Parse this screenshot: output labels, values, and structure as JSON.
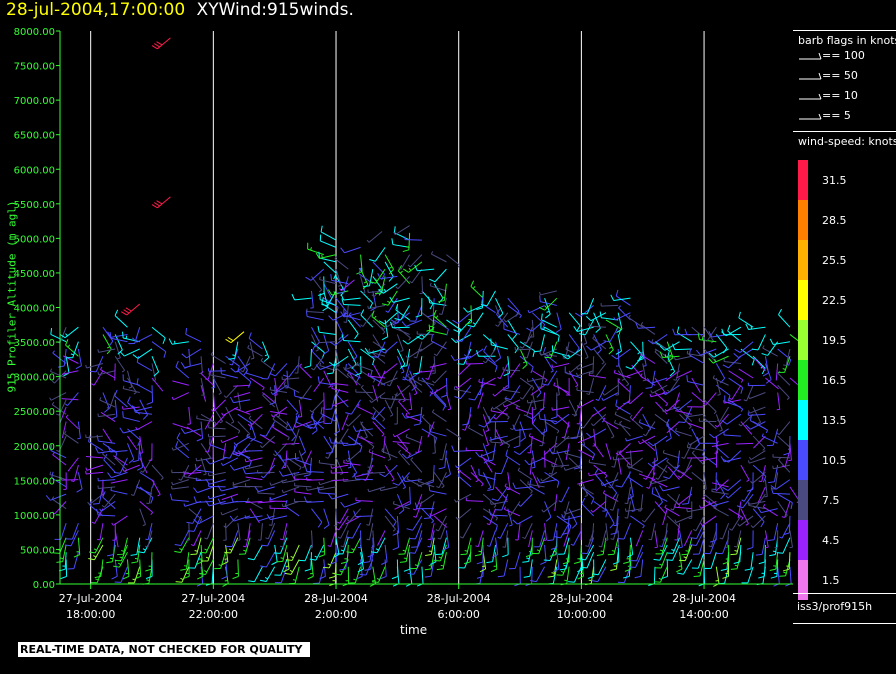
{
  "header": {
    "timestamp": "28-jul-2004,17:00:00",
    "product": "XYWind:915winds."
  },
  "chart_data": {
    "type": "wind-barb time-height",
    "ylabel": "915 Profiler Altitude (m agl)",
    "xlabel": "time",
    "ylim": [
      0,
      8000
    ],
    "yticks": [
      "0.00",
      "500.00",
      "1000.00",
      "1500.00",
      "2000.00",
      "2500.00",
      "3000.00",
      "3500.00",
      "4000.00",
      "4500.00",
      "5000.00",
      "5500.00",
      "6000.00",
      "6500.00",
      "7000.00",
      "7500.00",
      "8000.00"
    ],
    "xticks": [
      {
        "date": "27-Jul-2004",
        "time": "18:00:00"
      },
      {
        "date": "27-Jul-2004",
        "time": "22:00:00"
      },
      {
        "date": "28-Jul-2004",
        "time": "2:00:00"
      },
      {
        "date": "28-Jul-2004",
        "time": "6:00:00"
      },
      {
        "date": "28-Jul-2004",
        "time": "10:00:00"
      },
      {
        "date": "28-Jul-2004",
        "time": "14:00:00"
      }
    ],
    "xlim_hours": [
      -1,
      22.9
    ],
    "profile_interval_hours": 0.4,
    "vertical_gridlines": true,
    "high_level_barbs": [
      {
        "hour": 2.6,
        "alt": 7900,
        "speed": 31.5
      },
      {
        "hour": 2.6,
        "alt": 5600,
        "speed": 31.5
      },
      {
        "hour": 1.6,
        "alt": 4050,
        "speed": 31.5
      },
      {
        "hour": 5.0,
        "alt": 3650,
        "speed": 22.5
      },
      {
        "hour": 9.5,
        "alt": 5100,
        "speed": 7.5
      },
      {
        "hour": 8.6,
        "alt": 4400,
        "speed": 4.5
      }
    ]
  },
  "legend": {
    "flags_title": "barb flags in knots",
    "flags": [
      {
        "value": 100,
        "label": "== 100"
      },
      {
        "value": 50,
        "label": "== 50"
      },
      {
        "value": 10,
        "label": "== 10"
      },
      {
        "value": 5,
        "label": "== 5"
      }
    ],
    "speed_title": "wind-speed: knots",
    "speed_levels": [
      {
        "label": "31.5",
        "color": "#ff1a4a"
      },
      {
        "label": "28.5",
        "color": "#ff7f00"
      },
      {
        "label": "25.5",
        "color": "#ffb000"
      },
      {
        "label": "22.5",
        "color": "#ffff00"
      },
      {
        "label": "19.5",
        "color": "#99ff33"
      },
      {
        "label": "16.5",
        "color": "#22ee22"
      },
      {
        "label": "13.5",
        "color": "#00ffff"
      },
      {
        "label": "10.5",
        "color": "#4a4aff"
      },
      {
        "label": "7.5",
        "color": "#4a4a80"
      },
      {
        "label": "4.5",
        "color": "#9922ff"
      },
      {
        "label": "1.5",
        "color": "#ee77ee"
      }
    ]
  },
  "station": "iss3/prof915h",
  "footer_note": "REAL-TIME DATA, NOT CHECKED FOR QUALITY",
  "colors": {
    "axis": "#33ff33",
    "gridline": "#ffffff",
    "text": "#ffffff",
    "title_stamp": "#ffff00"
  }
}
